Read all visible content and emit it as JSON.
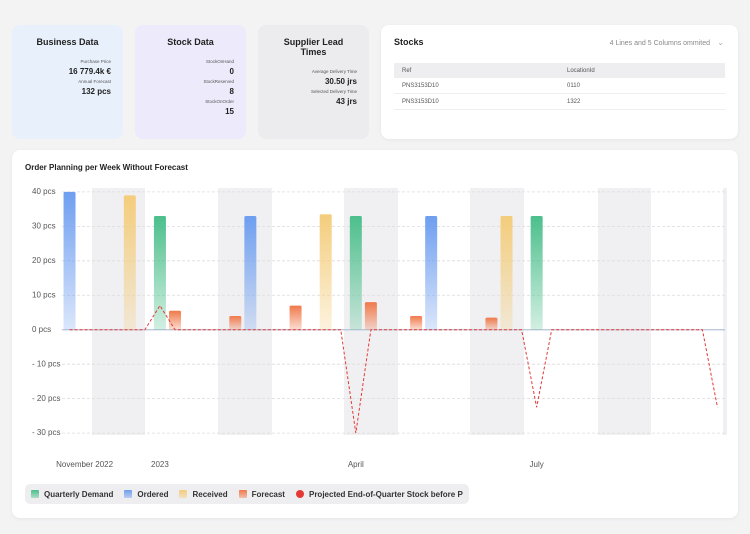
{
  "cards": [
    {
      "title": "Business Data",
      "fields": [
        {
          "label": "Purchase Price",
          "value": "16 779.4k €"
        },
        {
          "label": "Annual Forecast",
          "value": "132 pcs"
        }
      ]
    },
    {
      "title": "Stock Data",
      "fields": [
        {
          "label": "StockOnHand",
          "value": "0"
        },
        {
          "label": "StockReserved",
          "value": "8"
        },
        {
          "label": "StockOnOrder",
          "value": "15"
        }
      ]
    },
    {
      "title": "Supplier Lead Times",
      "fields": [
        {
          "label": "Average Delivery Time",
          "value": "30.50 jrs"
        },
        {
          "label": "Selected Delivery Time",
          "value": "43 jrs"
        }
      ]
    }
  ],
  "stocks": {
    "title": "Stocks",
    "note": "4 Lines and 5 Columns ommited",
    "columns": [
      "Ref",
      "LocationId"
    ],
    "rows": [
      [
        "PNS3153D10",
        "0110"
      ],
      [
        "PNS3153D10",
        "1322"
      ]
    ]
  },
  "chart_data": {
    "type": "bar",
    "title": "Order Planning per Week Without Forecast",
    "categories": [
      null,
      "November 2022",
      null,
      null,
      null,
      null,
      "2023",
      null,
      null,
      null,
      null,
      null,
      null,
      null,
      null,
      null,
      null,
      null,
      null,
      "April",
      null,
      null,
      null,
      null,
      null,
      null,
      null,
      null,
      null,
      null,
      null,
      "July",
      null,
      null,
      null,
      null,
      null,
      null,
      null,
      null,
      null,
      null,
      null,
      null
    ],
    "series": [
      {
        "name": "Quarterly Demand",
        "color": "#4cbf8c",
        "values": [
          null,
          null,
          null,
          null,
          null,
          null,
          33,
          null,
          null,
          null,
          null,
          null,
          null,
          null,
          null,
          null,
          null,
          null,
          null,
          33,
          null,
          null,
          null,
          null,
          null,
          null,
          null,
          null,
          null,
          null,
          null,
          33,
          null,
          null,
          null,
          null,
          null,
          null,
          null,
          null,
          null,
          null,
          null,
          null
        ]
      },
      {
        "name": "Ordered",
        "color": "#6e9ef0",
        "values": [
          40,
          null,
          null,
          null,
          null,
          null,
          null,
          null,
          null,
          null,
          null,
          null,
          33,
          null,
          null,
          null,
          null,
          null,
          null,
          null,
          null,
          null,
          null,
          null,
          33,
          null,
          null,
          null,
          null,
          null,
          null,
          null,
          null,
          null,
          null,
          null,
          null,
          null,
          null,
          null,
          null,
          null,
          null,
          null
        ]
      },
      {
        "name": "Received",
        "color": "#f4cd7c",
        "values": [
          null,
          null,
          null,
          null,
          39,
          null,
          null,
          null,
          null,
          null,
          null,
          null,
          null,
          null,
          null,
          null,
          null,
          33.5,
          null,
          null,
          null,
          null,
          null,
          null,
          null,
          null,
          null,
          null,
          null,
          33,
          null,
          null,
          null,
          null,
          null,
          null,
          null,
          null,
          null,
          null,
          null,
          null,
          null,
          null
        ]
      },
      {
        "name": "Forecast",
        "color": "#f0794a",
        "values": [
          null,
          null,
          null,
          null,
          null,
          null,
          null,
          5.5,
          null,
          null,
          null,
          4,
          null,
          null,
          null,
          7,
          null,
          null,
          null,
          null,
          8,
          null,
          null,
          4,
          null,
          null,
          null,
          null,
          3.5,
          null,
          null,
          null,
          null,
          null,
          null,
          null,
          null,
          null,
          null,
          null,
          null,
          null,
          null,
          null
        ]
      },
      {
        "name": "Projected End-of-Quarter Stock before P",
        "type": "line",
        "color": "#e53935",
        "values": [
          0,
          0,
          0,
          0,
          0,
          0,
          7,
          0,
          0,
          0,
          0,
          0,
          0,
          0,
          0,
          0,
          0,
          0,
          0,
          -30,
          0,
          0,
          0,
          0,
          0,
          0,
          0,
          0,
          0,
          0,
          0,
          -22.5,
          0,
          0,
          0,
          0,
          0,
          0,
          0,
          0,
          0,
          0,
          0,
          -22.5
        ]
      }
    ],
    "ylim": [
      -32,
      42
    ],
    "yticks": [
      {
        "value": 40,
        "label": "40 pcs"
      },
      {
        "value": 30,
        "label": "30 pcs"
      },
      {
        "value": 20,
        "label": "20 pcs"
      },
      {
        "value": 10,
        "label": "10 pcs"
      },
      {
        "value": 0,
        "label": "0 pcs"
      },
      {
        "value": -10,
        "label": "- 10 pcs"
      },
      {
        "value": -20,
        "label": "- 20 pcs"
      },
      {
        "value": -30,
        "label": "- 30 pcs"
      }
    ],
    "grid": true
  }
}
